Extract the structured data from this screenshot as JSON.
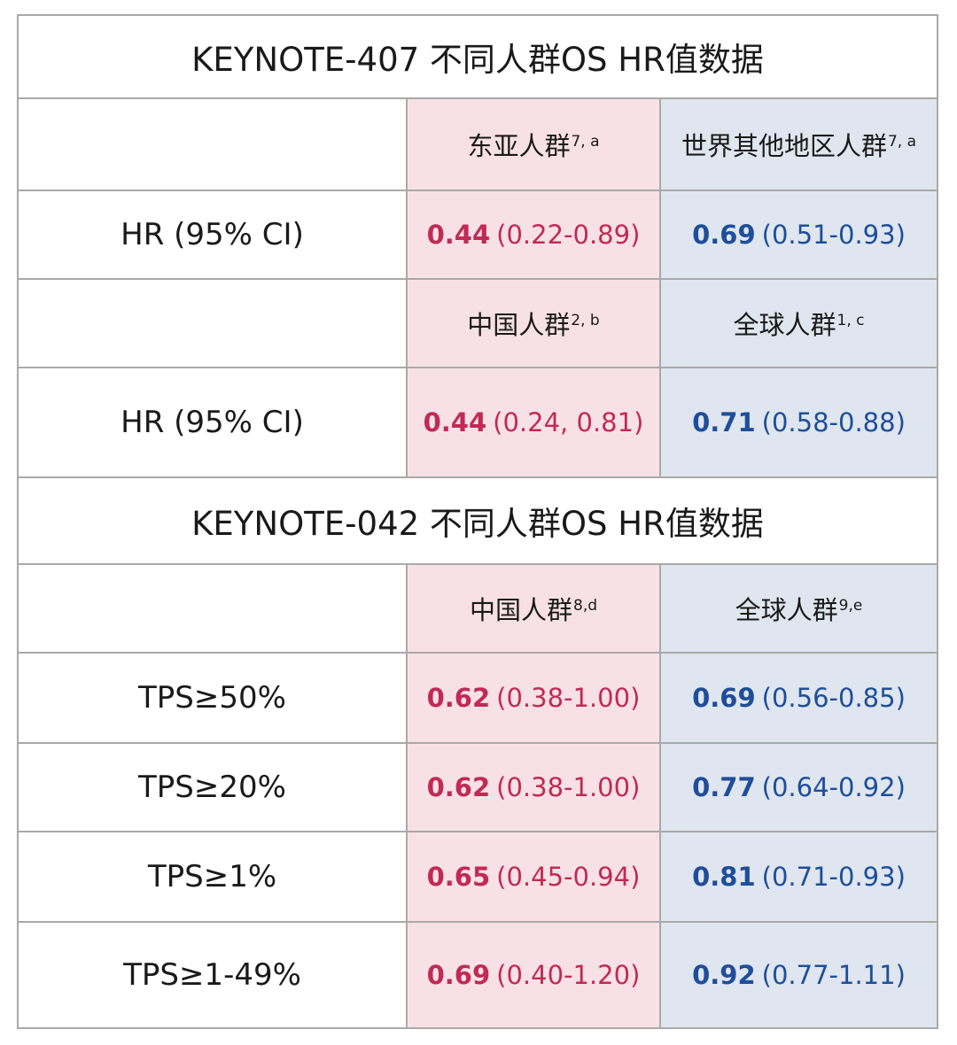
{
  "section_407": {
    "title": "KEYNOTE-407 不同人群OS HR值数据",
    "header1": {
      "col_pink": {
        "label": "东亚人群",
        "sup": "7, a"
      },
      "col_blue": {
        "label": "世界其他地区人群",
        "sup": "7, a"
      }
    },
    "row1": {
      "label": "HR (95% CI)",
      "pink": {
        "point": "0.44",
        "ci": "(0.22-0.89)"
      },
      "blue": {
        "point": "0.69",
        "ci": "(0.51-0.93)"
      }
    },
    "header2": {
      "col_pink": {
        "label": "中国人群",
        "sup": "2, b"
      },
      "col_blue": {
        "label": "全球人群",
        "sup": "1, c"
      }
    },
    "row2": {
      "label": "HR (95% CI)",
      "pink": {
        "point": "0.44",
        "ci": "(0.24, 0.81)"
      },
      "blue": {
        "point": "0.71",
        "ci": "(0.58-0.88)"
      }
    }
  },
  "section_042": {
    "title": "KEYNOTE-042 不同人群OS HR值数据",
    "header": {
      "col_pink": {
        "label": "中国人群",
        "sup": "8,d"
      },
      "col_blue": {
        "label": "全球人群",
        "sup": "9,e"
      }
    },
    "rows": [
      {
        "label": "TPS≥50%",
        "pink": {
          "point": "0.62",
          "ci": "(0.38-1.00)"
        },
        "blue": {
          "point": "0.69",
          "ci": "(0.56-0.85)"
        }
      },
      {
        "label": "TPS≥20%",
        "pink": {
          "point": "0.62",
          "ci": "(0.38-1.00)"
        },
        "blue": {
          "point": "0.77",
          "ci": "(0.64-0.92)"
        }
      },
      {
        "label": "TPS≥1%",
        "pink": {
          "point": "0.65",
          "ci": "(0.45-0.94)"
        },
        "blue": {
          "point": "0.81",
          "ci": "(0.71-0.93)"
        }
      },
      {
        "label": "TPS≥1-49%",
        "pink": {
          "point": "0.69",
          "ci": "(0.40-1.20)"
        },
        "blue": {
          "point": "0.92",
          "ci": "(0.77-1.11)"
        }
      }
    ]
  },
  "colors": {
    "pink_bg": "#f8e1e6",
    "blue_bg": "#dfe6ef",
    "pink_text": "#c12a55",
    "blue_text": "#1f4e9a",
    "border": "#a9a9a9"
  }
}
